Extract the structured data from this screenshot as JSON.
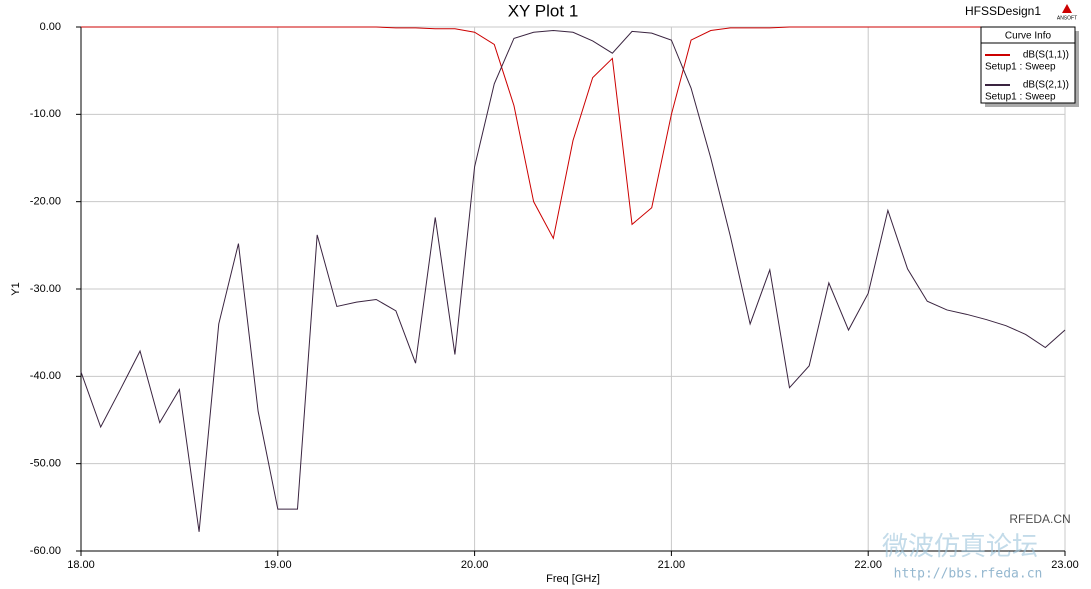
{
  "chart_data": {
    "type": "line",
    "title": "XY Plot 1",
    "design": "HFSSDesign1",
    "logo": "ANSOFT",
    "xlabel": "Freq [GHz]",
    "ylabel": "Y1",
    "legend_title": "Curve Info",
    "legend": "upper right",
    "grid": true,
    "x": [
      18.0,
      18.1,
      18.2,
      18.3,
      18.4,
      18.5,
      18.6,
      18.7,
      18.8,
      18.9,
      19.0,
      19.1,
      19.2,
      19.3,
      19.4,
      19.5,
      19.6,
      19.7,
      19.8,
      19.9,
      20.0,
      20.1,
      20.2,
      20.3,
      20.4,
      20.5,
      20.6,
      20.7,
      20.8,
      20.9,
      21.0,
      21.1,
      21.2,
      21.3,
      21.4,
      21.5,
      21.6,
      21.7,
      21.8,
      21.9,
      22.0,
      22.1,
      22.2,
      22.3,
      22.4,
      22.5,
      22.6,
      22.7,
      22.8,
      22.9,
      23.0
    ],
    "series": [
      {
        "name": "dB(S(1,1))",
        "solution": "Setup1 : Sweep",
        "color": "#cc0000",
        "values": [
          0,
          0,
          0,
          0,
          0,
          0,
          0,
          0,
          0,
          0,
          0,
          0,
          0,
          0,
          0,
          0,
          -0.1,
          -0.1,
          -0.2,
          -0.2,
          -0.6,
          -2.0,
          -9.0,
          -20.0,
          -24.2,
          -13.0,
          -5.8,
          -3.6,
          -22.6,
          -20.7,
          -10.0,
          -1.5,
          -0.4,
          -0.1,
          -0.1,
          -0.1,
          0,
          0,
          0,
          0,
          0,
          0,
          0,
          0,
          0,
          0,
          0,
          0,
          0,
          0,
          0
        ]
      },
      {
        "name": "dB(S(2,1))",
        "solution": "Setup1 : Sweep",
        "color": "#3a2440",
        "values": [
          -39.5,
          -45.8,
          -41.5,
          -37.1,
          -45.3,
          -41.5,
          -57.8,
          -34.0,
          -24.8,
          -44.0,
          -55.2,
          -55.2,
          -23.8,
          -32.0,
          -31.5,
          -31.2,
          -32.5,
          -38.5,
          -21.8,
          -37.5,
          -16.0,
          -6.5,
          -1.3,
          -0.6,
          -0.4,
          -0.6,
          -1.6,
          -3.0,
          -0.5,
          -0.7,
          -1.5,
          -7.0,
          -15.0,
          -24.0,
          -34.0,
          -27.8,
          -41.3,
          -38.8,
          -29.3,
          -34.7,
          -30.5,
          -21.0,
          -27.7,
          -31.4,
          -32.4,
          -32.9,
          -33.5,
          -34.2,
          -35.2,
          -36.7,
          -34.7
        ]
      }
    ],
    "xlim": [
      18,
      23
    ],
    "xticks": [
      {
        "value": 18,
        "label": "18.00"
      },
      {
        "value": 19,
        "label": "19.00"
      },
      {
        "value": 20,
        "label": "20.00"
      },
      {
        "value": 21,
        "label": "21.00"
      },
      {
        "value": 22,
        "label": "22.00"
      },
      {
        "value": 23,
        "label": "23.00"
      }
    ],
    "ylim": [
      -60,
      0
    ],
    "yticks": [
      {
        "value": 0,
        "label": "0.00"
      },
      {
        "value": -10,
        "label": "-10.00"
      },
      {
        "value": -20,
        "label": "-20.00"
      },
      {
        "value": -30,
        "label": "-30.00"
      },
      {
        "value": -40,
        "label": "-40.00"
      },
      {
        "value": -50,
        "label": "-50.00"
      },
      {
        "value": -60,
        "label": "-60.00"
      }
    ]
  },
  "watermark": {
    "site": "RFEDA.CN",
    "forum": "微波仿真论坛",
    "url": "http://bbs.rfeda.cn"
  }
}
